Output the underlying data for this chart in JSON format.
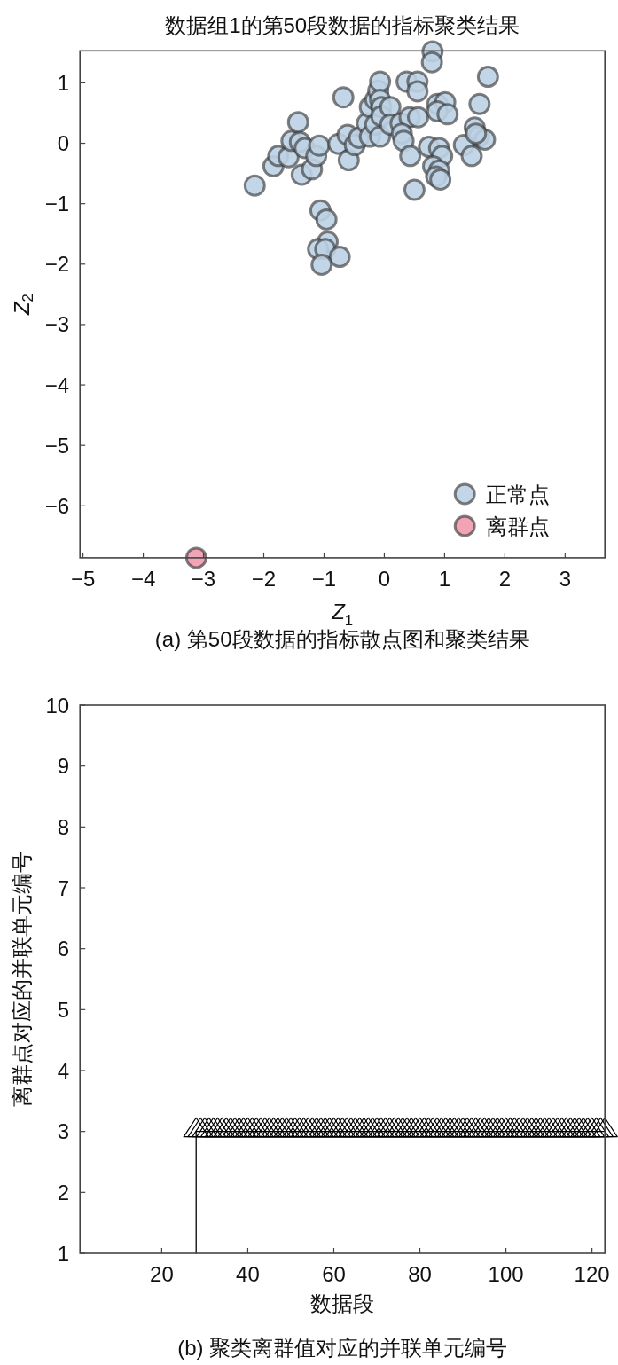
{
  "chart_data": [
    {
      "type": "scatter",
      "title": "数据组1的第50段数据的指标聚类结果",
      "xlabel": "Z$_{1}$",
      "ylabel": "Z$_{2}$",
      "annotations": [
        "(a) 第50段数据的指标散点图和聚类结果"
      ],
      "series": [
        {
          "name": "正常点",
          "color": "#bcd2e4",
          "x": [
            -2.15,
            -1.84,
            -1.76,
            -1.59,
            -1.54,
            -1.43,
            -1.4,
            -1.32,
            -1.37,
            -1.2,
            -1.13,
            -1.08,
            -0.76,
            -0.68,
            -0.61,
            -0.59,
            -0.49,
            -0.42,
            -0.29,
            -0.24,
            -0.24,
            -0.15,
            -0.15,
            -0.1,
            -0.07,
            -0.07,
            -0.05,
            -0.05,
            -0.07,
            0.1,
            0.1,
            0.27,
            0.37,
            0.55,
            0.55,
            0.42,
            0.56,
            0.29,
            0.32,
            0.43,
            0.5,
            0.8,
            0.79,
            1.72,
            1.58,
            0.88,
            1.01,
            0.88,
            1.05,
            0.74,
            0.91,
            0.96,
            0.81,
            0.91,
            0.86,
            0.93,
            1.5,
            1.57,
            1.67,
            1.32,
            1.45,
            1.52,
            -1.06,
            -0.96,
            -0.94,
            -1.1,
            -0.98,
            -0.74,
            -1.04
          ],
          "values": [
            -0.7,
            -0.38,
            -0.21,
            -0.23,
            0.04,
            0.35,
            0.02,
            -0.08,
            -0.52,
            -0.43,
            -0.21,
            -0.04,
            -0.01,
            0.76,
            0.14,
            -0.28,
            -0.03,
            0.09,
            0.33,
            0.11,
            0.6,
            0.72,
            0.31,
            0.87,
            1.02,
            0.72,
            0.6,
            0.45,
            0.11,
            0.6,
            0.31,
            0.33,
            1.02,
            1.02,
            0.86,
            0.43,
            0.43,
            0.16,
            0.04,
            -0.21,
            -0.77,
            1.52,
            1.34,
            1.1,
            0.65,
            0.65,
            0.68,
            0.53,
            0.48,
            -0.06,
            -0.08,
            -0.21,
            -0.38,
            -0.45,
            -0.55,
            -0.6,
            0.26,
            0.11,
            0.06,
            -0.03,
            -0.21,
            0.16,
            -1.11,
            -1.26,
            -1.63,
            -1.75,
            -1.75,
            -1.88,
            -2.01
          ]
        },
        {
          "name": "离群点",
          "color": "#ef9aae",
          "x": [
            -3.12
          ],
          "values": [
            -6.86
          ]
        }
      ],
      "xlim": [
        -5.05,
        3.66
      ],
      "ylim": [
        -6.86,
        1.53
      ],
      "xticks": [
        {
          "value": -5,
          "label": "−5"
        },
        {
          "value": -4,
          "label": "−4"
        },
        {
          "value": -3,
          "label": "−3"
        },
        {
          "value": -2,
          "label": "−2"
        },
        {
          "value": -1,
          "label": "−1"
        },
        0,
        1,
        2,
        3
      ],
      "yticks": [
        {
          "value": -6,
          "label": "−6"
        },
        {
          "value": -5,
          "label": "−5"
        },
        {
          "value": -4,
          "label": "−4"
        },
        {
          "value": -3,
          "label": "−3"
        },
        {
          "value": -2,
          "label": "−2"
        },
        {
          "value": -1,
          "label": "−1"
        },
        0,
        1
      ],
      "legend": "bottom right",
      "marker": "circle"
    },
    {
      "type": "line",
      "xlabel": "数据段",
      "ylabel": "离群点对应的并联单元编号",
      "annotations": [
        "(b) 聚类离群值对应的并联单元编号"
      ],
      "series": [
        {
          "color": "#000000",
          "x": [
            28,
            28
          ],
          "values": [
            1,
            3
          ]
        },
        {
          "color": "#000000",
          "marker": "triangle",
          "x": [
            28,
            29,
            30,
            31,
            32,
            33,
            34,
            35,
            36,
            37,
            38,
            39,
            40,
            41,
            42,
            43,
            44,
            45,
            46,
            47,
            48,
            49,
            50,
            51,
            52,
            53,
            54,
            55,
            56,
            57,
            58,
            59,
            60,
            61,
            62,
            63,
            64,
            65,
            66,
            67,
            68,
            69,
            70,
            71,
            72,
            73,
            74,
            75,
            76,
            77,
            78,
            79,
            80,
            81,
            82,
            83,
            84,
            85,
            86,
            87,
            88,
            89,
            90,
            91,
            92,
            93,
            94,
            95,
            96,
            97,
            98,
            99,
            100,
            101,
            102,
            103,
            104,
            105,
            106,
            107,
            108,
            109,
            110,
            111,
            112,
            113,
            114,
            115,
            116,
            117,
            118,
            119,
            120,
            121,
            122,
            123
          ],
          "values": [
            3,
            3,
            3,
            3,
            3,
            3,
            3,
            3,
            3,
            3,
            3,
            3,
            3,
            3,
            3,
            3,
            3,
            3,
            3,
            3,
            3,
            3,
            3,
            3,
            3,
            3,
            3,
            3,
            3,
            3,
            3,
            3,
            3,
            3,
            3,
            3,
            3,
            3,
            3,
            3,
            3,
            3,
            3,
            3,
            3,
            3,
            3,
            3,
            3,
            3,
            3,
            3,
            3,
            3,
            3,
            3,
            3,
            3,
            3,
            3,
            3,
            3,
            3,
            3,
            3,
            3,
            3,
            3,
            3,
            3,
            3,
            3,
            3,
            3,
            3,
            3,
            3,
            3,
            3,
            3,
            3,
            3,
            3,
            3,
            3,
            3,
            3,
            3,
            3,
            3,
            3,
            3,
            3,
            3,
            3,
            3
          ]
        }
      ],
      "xlim": [
        1,
        123
      ],
      "ylim": [
        1,
        10
      ],
      "xticks": [
        20,
        40,
        60,
        80,
        100,
        120
      ],
      "yticks": [
        1,
        2,
        3,
        4,
        5,
        6,
        7,
        8,
        9,
        10
      ],
      "line_style": "solid"
    }
  ]
}
